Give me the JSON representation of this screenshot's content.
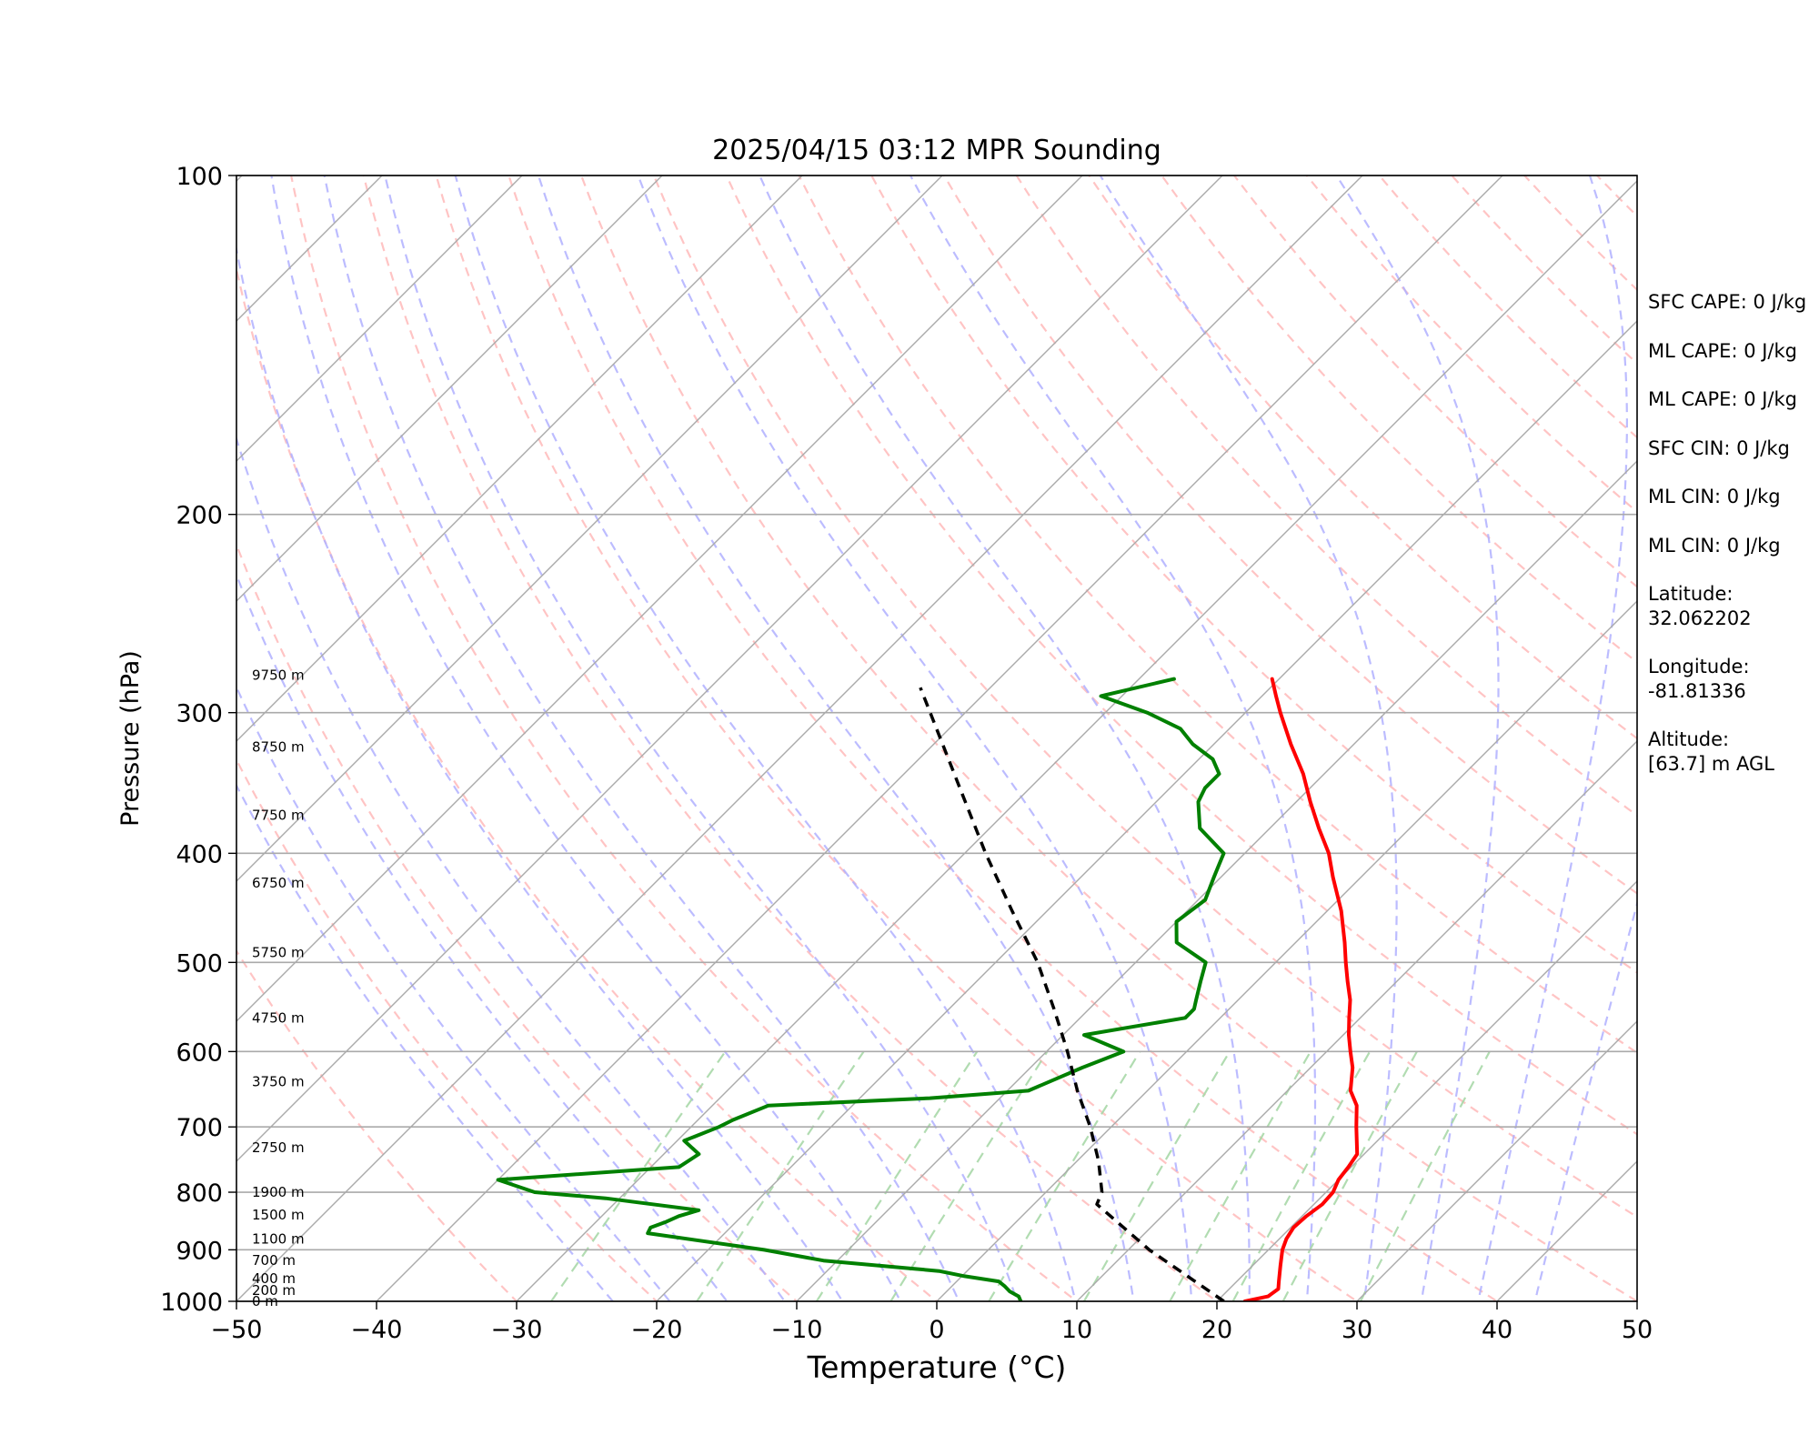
{
  "chart_data": {
    "type": "line",
    "title": "2025/04/15 03:12 MPR Sounding",
    "xlabel": "Temperature (°C)",
    "ylabel": "Pressure (hPa)",
    "xlim": [
      -50,
      50
    ],
    "ylim": [
      1000,
      100
    ],
    "y_scale": "log",
    "skew": "skew-T",
    "x_ticks": [
      "−50",
      "−40",
      "−30",
      "−20",
      "−10",
      "0",
      "10",
      "20",
      "30",
      "40",
      "50"
    ],
    "y_ticks": [
      "100",
      "200",
      "300",
      "400",
      "500",
      "600",
      "700",
      "800",
      "900",
      "1000"
    ],
    "height_labels": [
      {
        "p": 1000,
        "label": "0 m"
      },
      {
        "p": 978,
        "label": "200 m"
      },
      {
        "p": 955,
        "label": "400 m"
      },
      {
        "p": 920,
        "label": "700 m"
      },
      {
        "p": 880,
        "label": "1100 m"
      },
      {
        "p": 838,
        "label": "1500 m"
      },
      {
        "p": 800,
        "label": "1900 m"
      },
      {
        "p": 730,
        "label": "2750 m"
      },
      {
        "p": 638,
        "label": "3750 m"
      },
      {
        "p": 560,
        "label": "4750 m"
      },
      {
        "p": 490,
        "label": "5750 m"
      },
      {
        "p": 425,
        "label": "6750 m"
      },
      {
        "p": 370,
        "label": "7750 m"
      },
      {
        "p": 322,
        "label": "8750 m"
      },
      {
        "p": 278,
        "label": "9750 m"
      }
    ],
    "series": [
      {
        "name": "temperature",
        "color": "#ff0000",
        "points": [
          [
            1000,
            22.0
          ],
          [
            990,
            23.3
          ],
          [
            975,
            23.5
          ],
          [
            960,
            23.0
          ],
          [
            930,
            22.0
          ],
          [
            900,
            21.0
          ],
          [
            880,
            20.5
          ],
          [
            860,
            20.2
          ],
          [
            840,
            20.3
          ],
          [
            820,
            20.6
          ],
          [
            800,
            20.5
          ],
          [
            780,
            20.0
          ],
          [
            760,
            19.8
          ],
          [
            740,
            19.5
          ],
          [
            700,
            17.5
          ],
          [
            670,
            16.0
          ],
          [
            650,
            14.5
          ],
          [
            620,
            13.0
          ],
          [
            600,
            11.7
          ],
          [
            580,
            10.4
          ],
          [
            560,
            9.2
          ],
          [
            540,
            8.0
          ],
          [
            520,
            6.5
          ],
          [
            500,
            5.0
          ],
          [
            480,
            3.5
          ],
          [
            450,
            1.0
          ],
          [
            420,
            -2.0
          ],
          [
            400,
            -4.0
          ],
          [
            380,
            -6.5
          ],
          [
            360,
            -9.0
          ],
          [
            340,
            -11.5
          ],
          [
            320,
            -14.5
          ],
          [
            300,
            -17.5
          ],
          [
            290,
            -19.0
          ],
          [
            280,
            -20.5
          ]
        ]
      },
      {
        "name": "dewpoint",
        "color": "#008000",
        "points": [
          [
            1000,
            6.0
          ],
          [
            990,
            5.5
          ],
          [
            980,
            4.5
          ],
          [
            970,
            3.8
          ],
          [
            960,
            3.0
          ],
          [
            950,
            0.2
          ],
          [
            940,
            -2.0
          ],
          [
            920,
            -11.0
          ],
          [
            900,
            -16.0
          ],
          [
            870,
            -25.5
          ],
          [
            860,
            -25.7
          ],
          [
            850,
            -25.0
          ],
          [
            840,
            -24.5
          ],
          [
            830,
            -23.5
          ],
          [
            810,
            -31.0
          ],
          [
            800,
            -36.5
          ],
          [
            780,
            -40.0
          ],
          [
            760,
            -28.0
          ],
          [
            740,
            -27.5
          ],
          [
            720,
            -29.5
          ],
          [
            700,
            -28.0
          ],
          [
            690,
            -27.5
          ],
          [
            670,
            -26.0
          ],
          [
            660,
            -15.0
          ],
          [
            650,
            -8.5
          ],
          [
            620,
            -6.3
          ],
          [
            600,
            -4.5
          ],
          [
            580,
            -8.5
          ],
          [
            560,
            -2.5
          ],
          [
            550,
            -2.5
          ],
          [
            540,
            -3.0
          ],
          [
            520,
            -4.0
          ],
          [
            500,
            -5.0
          ],
          [
            480,
            -8.5
          ],
          [
            460,
            -10.0
          ],
          [
            440,
            -9.5
          ],
          [
            420,
            -10.5
          ],
          [
            410,
            -11.0
          ],
          [
            400,
            -11.5
          ],
          [
            380,
            -15.0
          ],
          [
            360,
            -17.0
          ],
          [
            350,
            -17.5
          ],
          [
            340,
            -17.5
          ],
          [
            330,
            -19.0
          ],
          [
            320,
            -21.5
          ],
          [
            310,
            -23.5
          ],
          [
            300,
            -27.0
          ],
          [
            290,
            -31.5
          ],
          [
            280,
            -27.5
          ]
        ]
      },
      {
        "name": "parcel profile",
        "color": "#000000",
        "style": "dashed",
        "points": [
          [
            1000,
            20.5
          ],
          [
            900,
            11.5
          ],
          [
            820,
            4.5
          ],
          [
            800,
            4.0
          ],
          [
            750,
            1.5
          ],
          [
            700,
            -1.5
          ],
          [
            650,
            -5.0
          ],
          [
            600,
            -8.5
          ],
          [
            550,
            -12.5
          ],
          [
            500,
            -17.0
          ],
          [
            450,
            -22.5
          ],
          [
            400,
            -28.5
          ],
          [
            350,
            -35.0
          ],
          [
            300,
            -42.5
          ],
          [
            285,
            -45.0
          ]
        ]
      }
    ],
    "background_lines": [
      {
        "name": "isotherms",
        "color": "#aaaaaa",
        "style": "solid"
      },
      {
        "name": "dry adiabats",
        "color": "#ffb0b0",
        "style": "dashed"
      },
      {
        "name": "moist adiabats",
        "color": "#b0b0ff",
        "style": "dashed"
      },
      {
        "name": "mixing ratio lines",
        "color": "#a8d8a8",
        "style": "dashed"
      }
    ]
  },
  "annotations": [
    "SFC CAPE: 0 J/kg",
    "ML CAPE: 0 J/kg",
    "ML CAPE: 0 J/kg",
    "SFC CIN: 0 J/kg",
    "ML CIN: 0 J/kg",
    "ML CIN: 0 J/kg",
    "Latitude:",
    "32.062202",
    "Longitude:",
    "-81.81336",
    "Altitude:",
    "[63.7] m AGL"
  ]
}
